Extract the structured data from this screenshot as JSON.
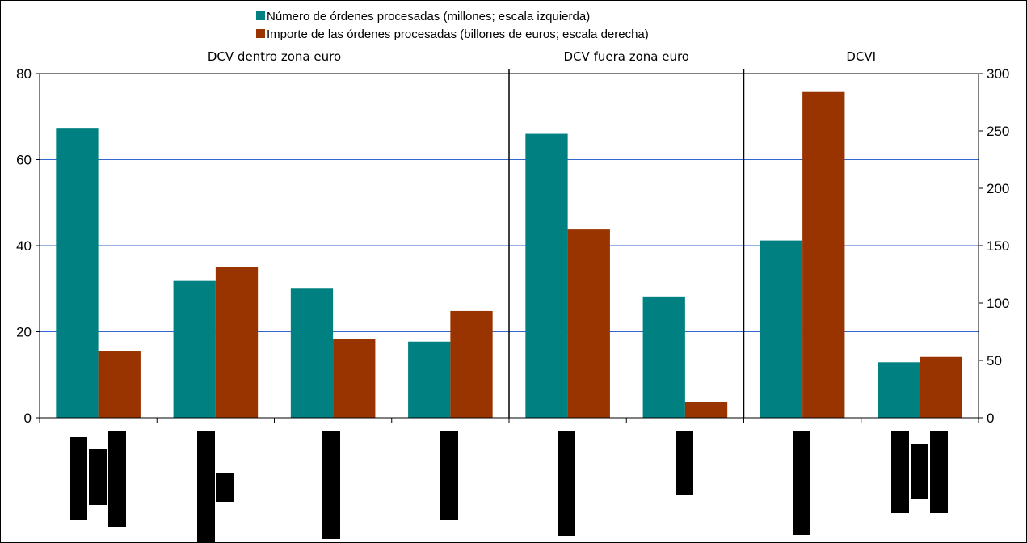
{
  "chart_data": {
    "type": "bar",
    "legend_position": "top-center",
    "grid": true,
    "series": [
      {
        "name": "Número de órdenes procesadas (millones; escala izquierda)",
        "axis": "left",
        "color": "#008080",
        "values": [
          67.2,
          31.8,
          30.0,
          17.7,
          66.0,
          28.2,
          41.2,
          12.9
        ]
      },
      {
        "name": "Importe de las órdenes procesadas (billones de euros; escala derecha)",
        "axis": "right",
        "color": "#993300",
        "values": [
          58,
          131,
          69,
          93,
          164,
          14,
          284,
          53
        ]
      }
    ],
    "groups": [
      {
        "label": "DCV dentro zona euro",
        "categories": 4
      },
      {
        "label": "DCV fuera zona euro",
        "categories": 2
      },
      {
        "label": "DCVI",
        "categories": 2
      }
    ],
    "left_axis": {
      "ylim": [
        0,
        80
      ],
      "ticks": [
        0,
        20,
        40,
        60,
        80
      ]
    },
    "right_axis": {
      "ylim": [
        0,
        300
      ],
      "ticks": [
        0,
        50,
        100,
        150,
        200,
        250,
        300
      ]
    },
    "redacted_category_labels": true,
    "redaction_color": "#000000"
  }
}
